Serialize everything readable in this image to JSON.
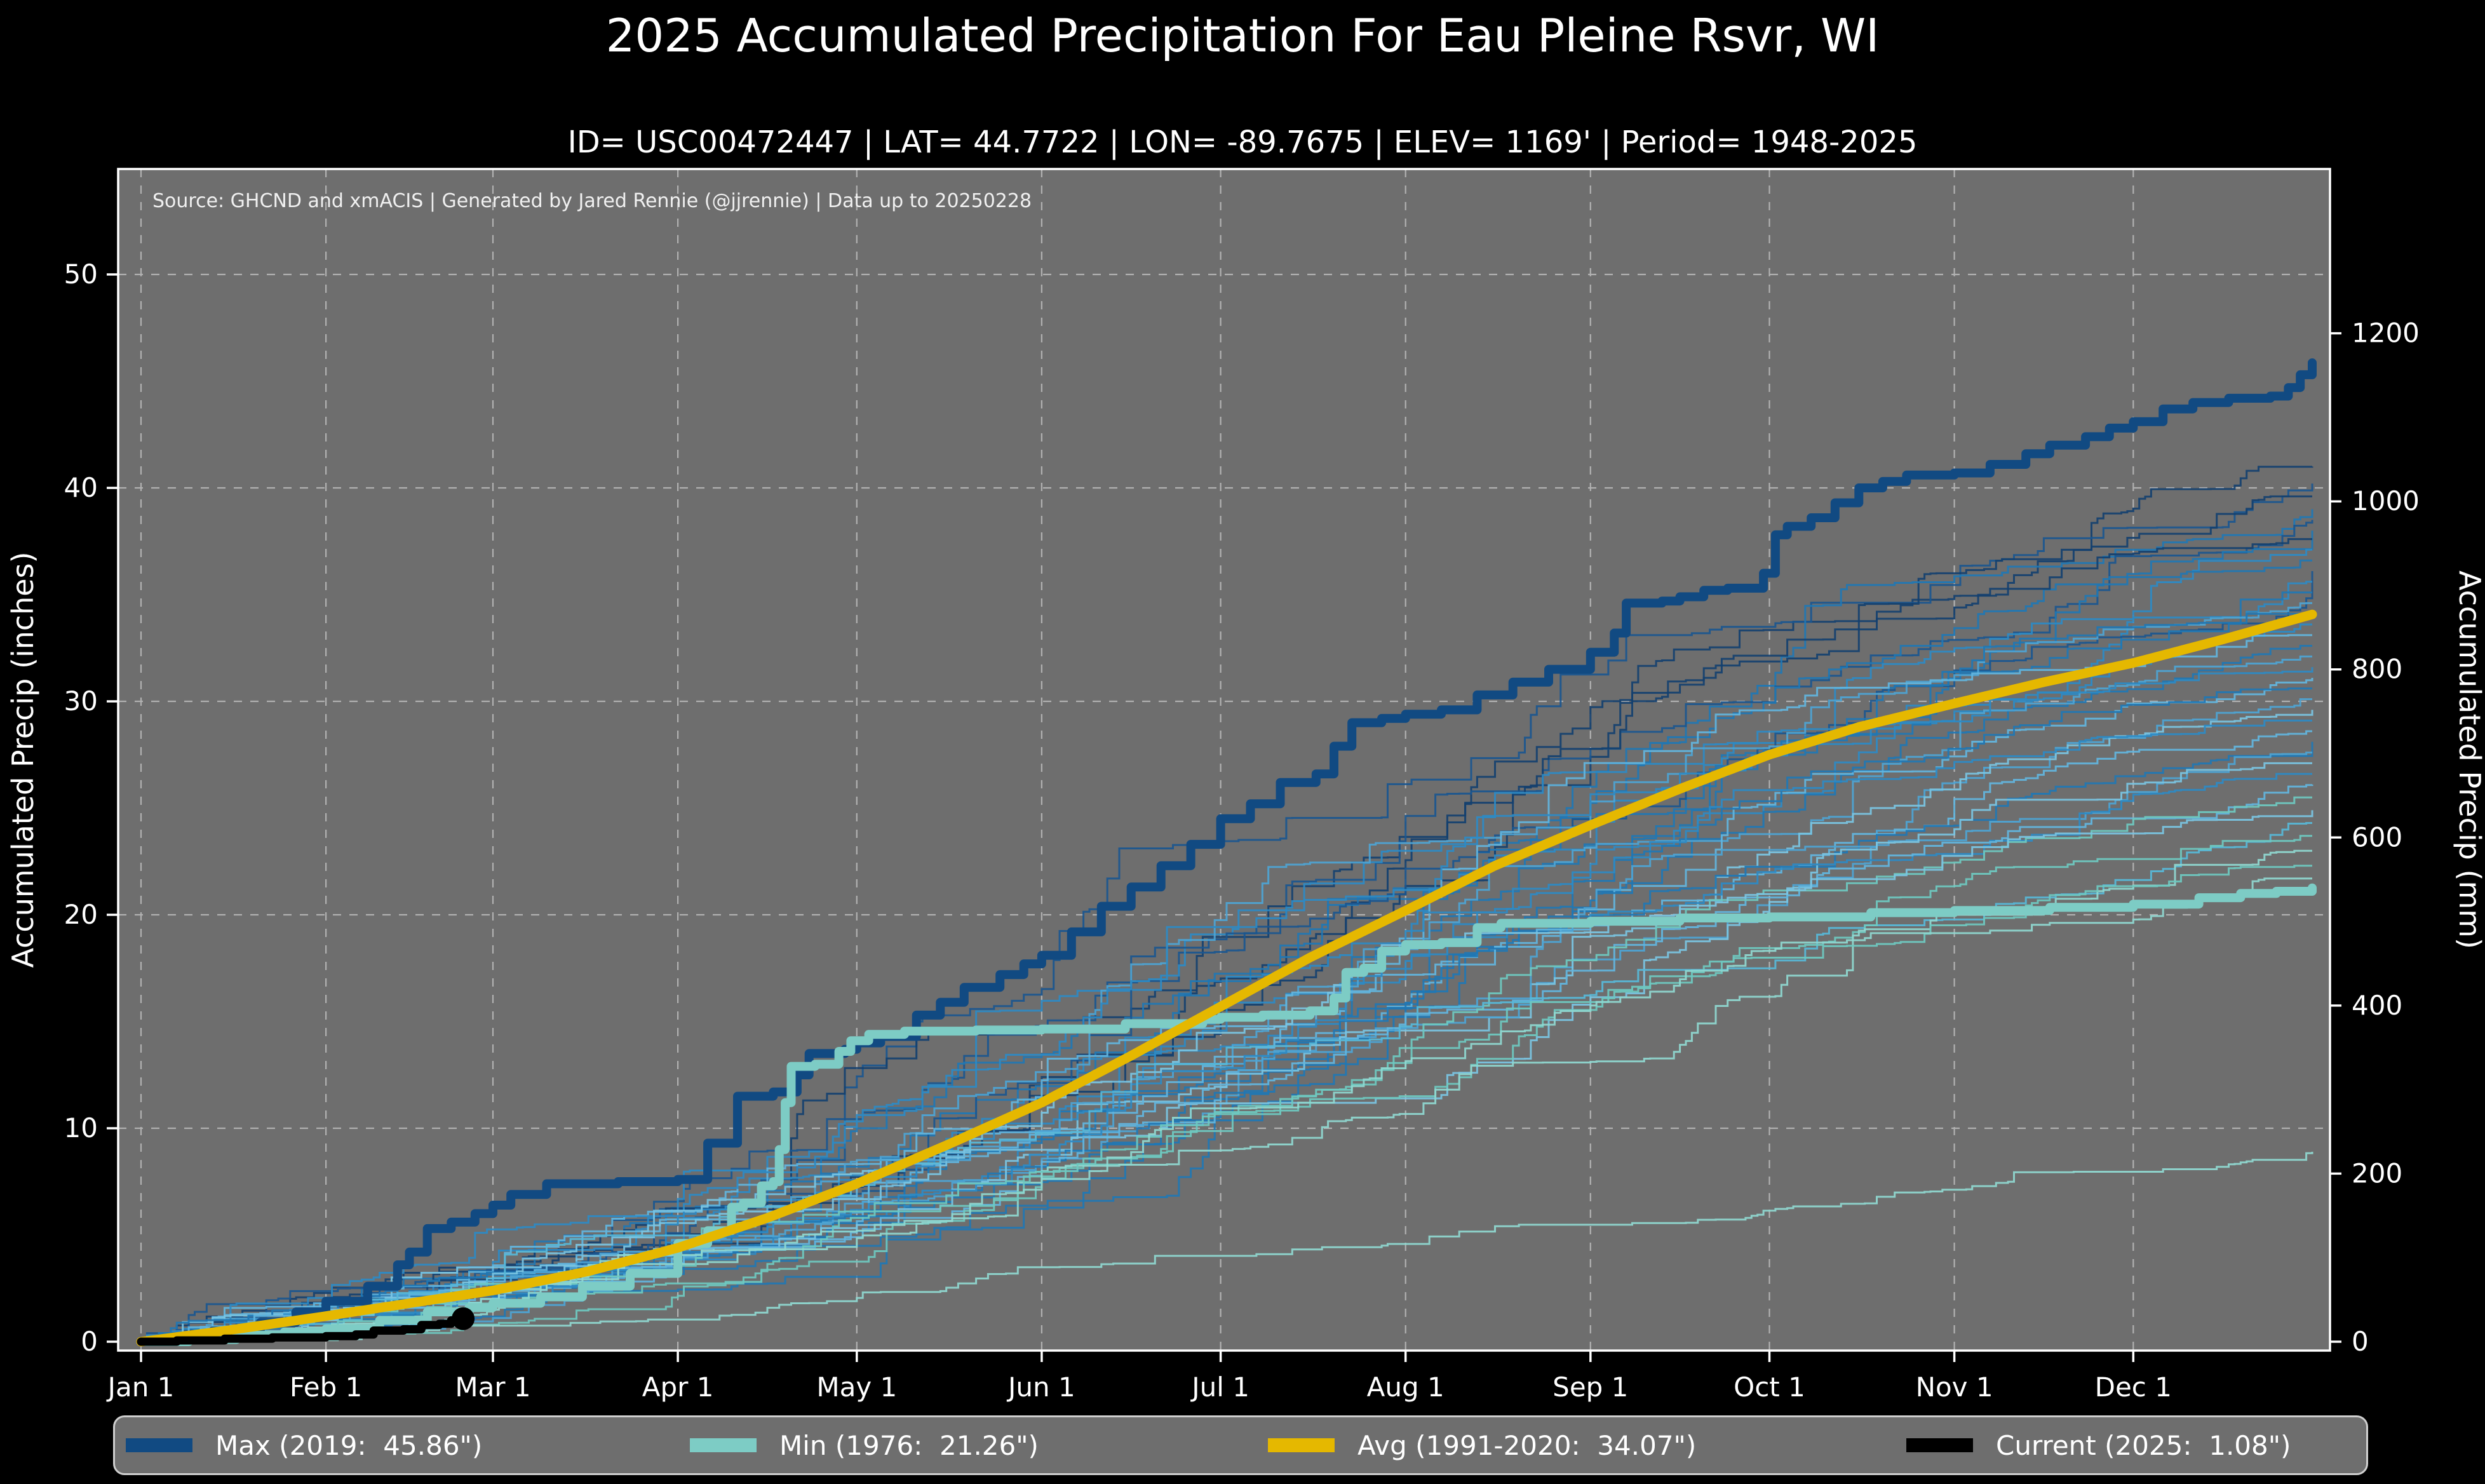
{
  "title": "2025 Accumulated Precipitation For Eau Pleine Rsvr, WI",
  "subtitle": "ID= USC00472447 | LAT= 44.7722 | LON= -89.7675 | ELEV= 1169' | Period= 1948-2025",
  "source_note": "Source: GHCND and xmACIS | Generated by Jared Rennie (@jjrennie) | Data up to 20250228",
  "colors": {
    "figure_bg": "#000000",
    "plot_bg": "#6e6e6e",
    "grid": "#e8e8e8",
    "spine": "#ffffff",
    "text": "#ffffff",
    "max": "#114a82",
    "min": "#7dccc5",
    "avg": "#e5b800",
    "current": "#000000"
  },
  "axes": {
    "left_label": "Accumulated Precip (inches)",
    "right_label": "Accumulated Precip (mm)",
    "left_ticks": [
      0,
      10,
      20,
      30,
      40,
      50
    ],
    "right_ticks": [
      0,
      200,
      400,
      600,
      800,
      1000,
      1200
    ],
    "x_ticks": [
      {
        "label": "Jan 1",
        "day": 0
      },
      {
        "label": "Feb 1",
        "day": 31
      },
      {
        "label": "Mar 1",
        "day": 59
      },
      {
        "label": "Apr 1",
        "day": 90
      },
      {
        "label": "May 1",
        "day": 120
      },
      {
        "label": "Jun 1",
        "day": 151
      },
      {
        "label": "Jul 1",
        "day": 181
      },
      {
        "label": "Aug 1",
        "day": 212
      },
      {
        "label": "Sep 1",
        "day": 243
      },
      {
        "label": "Oct 1",
        "day": 273
      },
      {
        "label": "Nov 1",
        "day": 304
      },
      {
        "label": "Dec 1",
        "day": 334
      }
    ],
    "days_in_year": 365,
    "ylim_inches": [
      0,
      55
    ]
  },
  "legend": [
    {
      "name": "max",
      "label": "Max (2019:  45.86\")",
      "color": "#114a82",
      "x": 17
    },
    {
      "name": "min",
      "label": "Min (1976:  21.26\")",
      "color": "#7dccc5",
      "x": 905
    },
    {
      "name": "avg",
      "label": "Avg (1991-2020:  34.07\")",
      "color": "#e5b800",
      "x": 1815
    },
    {
      "name": "current",
      "label": "Current (2025:  1.08\")",
      "color": "#000000",
      "x": 2820
    }
  ],
  "chart_data": {
    "type": "line",
    "x_unit": "day_of_year",
    "title": "2025 Accumulated Precipitation For Eau Pleine Rsvr, WI",
    "ylabel_left": "Accumulated Precip (inches)",
    "ylabel_right": "Accumulated Precip (mm)",
    "grid": true,
    "legend_position": "bottom",
    "series": [
      {
        "name": "Max",
        "year": 2019,
        "total_in": 45.86,
        "color": "#114a82",
        "width": 14,
        "style": "step",
        "points": [
          [
            0,
            0
          ],
          [
            6,
            0.2
          ],
          [
            12,
            0.5
          ],
          [
            20,
            0.9
          ],
          [
            26,
            1.4
          ],
          [
            31,
            1.9
          ],
          [
            38,
            2.6
          ],
          [
            43,
            3.6
          ],
          [
            45,
            4.2
          ],
          [
            48,
            5.3
          ],
          [
            52,
            5.6
          ],
          [
            56,
            6.0
          ],
          [
            59,
            6.4
          ],
          [
            62,
            6.9
          ],
          [
            68,
            7.4
          ],
          [
            80,
            7.5
          ],
          [
            90,
            7.6
          ],
          [
            95,
            9.3
          ],
          [
            100,
            11.5
          ],
          [
            106,
            11.7
          ],
          [
            110,
            12.5
          ],
          [
            112,
            13.5
          ],
          [
            118,
            13.7
          ],
          [
            120,
            14.0
          ],
          [
            124,
            14.3
          ],
          [
            130,
            15.3
          ],
          [
            134,
            15.9
          ],
          [
            138,
            16.6
          ],
          [
            144,
            17.2
          ],
          [
            148,
            17.7
          ],
          [
            151,
            18.1
          ],
          [
            156,
            19.2
          ],
          [
            161,
            20.4
          ],
          [
            166,
            21.3
          ],
          [
            171,
            22.3
          ],
          [
            176,
            23.3
          ],
          [
            181,
            24.5
          ],
          [
            186,
            25.2
          ],
          [
            191,
            26.2
          ],
          [
            197,
            26.6
          ],
          [
            200,
            27.9
          ],
          [
            203,
            29.0
          ],
          [
            208,
            29.2
          ],
          [
            212,
            29.4
          ],
          [
            218,
            29.6
          ],
          [
            224,
            30.3
          ],
          [
            230,
            30.9
          ],
          [
            236,
            31.5
          ],
          [
            243,
            32.3
          ],
          [
            247,
            33.2
          ],
          [
            249,
            34.6
          ],
          [
            255,
            34.7
          ],
          [
            258,
            34.9
          ],
          [
            262,
            35.2
          ],
          [
            266,
            35.3
          ],
          [
            272,
            36.0
          ],
          [
            274,
            37.8
          ],
          [
            276,
            38.2
          ],
          [
            280,
            38.6
          ],
          [
            284,
            39.3
          ],
          [
            288,
            40.0
          ],
          [
            292,
            40.3
          ],
          [
            296,
            40.6
          ],
          [
            304,
            40.7
          ],
          [
            310,
            41.1
          ],
          [
            316,
            41.6
          ],
          [
            320,
            42.0
          ],
          [
            326,
            42.4
          ],
          [
            330,
            42.8
          ],
          [
            334,
            43.1
          ],
          [
            339,
            43.7
          ],
          [
            344,
            44.0
          ],
          [
            350,
            44.2
          ],
          [
            357,
            44.3
          ],
          [
            360,
            44.7
          ],
          [
            362,
            45.3
          ],
          [
            364,
            45.86
          ]
        ]
      },
      {
        "name": "Min",
        "year": 1976,
        "total_in": 21.26,
        "color": "#7dccc5",
        "width": 14,
        "style": "step",
        "points": [
          [
            0,
            0
          ],
          [
            8,
            0.1
          ],
          [
            16,
            0.3
          ],
          [
            24,
            0.45
          ],
          [
            31,
            0.6
          ],
          [
            40,
            1.0
          ],
          [
            48,
            1.4
          ],
          [
            55,
            1.6
          ],
          [
            59,
            1.8
          ],
          [
            67,
            2.1
          ],
          [
            74,
            2.6
          ],
          [
            82,
            3.2
          ],
          [
            90,
            4.6
          ],
          [
            95,
            5.2
          ],
          [
            99,
            6.3
          ],
          [
            101,
            6.5
          ],
          [
            104,
            7.3
          ],
          [
            106,
            7.5
          ],
          [
            107,
            9.0
          ],
          [
            108,
            11.2
          ],
          [
            109,
            12.9
          ],
          [
            113,
            13.0
          ],
          [
            117,
            13.6
          ],
          [
            119,
            14.1
          ],
          [
            122,
            14.4
          ],
          [
            128,
            14.55
          ],
          [
            140,
            14.6
          ],
          [
            151,
            14.65
          ],
          [
            165,
            14.9
          ],
          [
            178,
            15.1
          ],
          [
            181,
            15.2
          ],
          [
            188,
            15.3
          ],
          [
            196,
            15.5
          ],
          [
            200,
            16.1
          ],
          [
            202,
            17.3
          ],
          [
            205,
            17.5
          ],
          [
            208,
            18.3
          ],
          [
            212,
            18.6
          ],
          [
            218,
            18.7
          ],
          [
            224,
            19.4
          ],
          [
            228,
            19.6
          ],
          [
            243,
            19.7
          ],
          [
            258,
            19.85
          ],
          [
            273,
            19.9
          ],
          [
            290,
            20.1
          ],
          [
            304,
            20.2
          ],
          [
            320,
            20.35
          ],
          [
            334,
            20.5
          ],
          [
            345,
            20.8
          ],
          [
            352,
            21.0
          ],
          [
            358,
            21.1
          ],
          [
            364,
            21.26
          ]
        ]
      },
      {
        "name": "Avg",
        "period": "1991-2020",
        "total_in": 34.07,
        "color": "#e5b800",
        "width": 15,
        "style": "linear",
        "points": [
          [
            0,
            0
          ],
          [
            15,
            0.55
          ],
          [
            31,
            1.2
          ],
          [
            45,
            1.8
          ],
          [
            59,
            2.4
          ],
          [
            75,
            3.3
          ],
          [
            90,
            4.4
          ],
          [
            105,
            5.8
          ],
          [
            120,
            7.4
          ],
          [
            135,
            9.2
          ],
          [
            151,
            11.2
          ],
          [
            166,
            13.4
          ],
          [
            181,
            15.7
          ],
          [
            196,
            18.0
          ],
          [
            212,
            20.2
          ],
          [
            227,
            22.3
          ],
          [
            243,
            24.2
          ],
          [
            258,
            25.9
          ],
          [
            273,
            27.5
          ],
          [
            288,
            28.8
          ],
          [
            304,
            29.9
          ],
          [
            319,
            30.9
          ],
          [
            334,
            31.8
          ],
          [
            349,
            32.9
          ],
          [
            364,
            34.07
          ]
        ]
      },
      {
        "name": "Current",
        "year": 2025,
        "total_in": 1.08,
        "color": "#000000",
        "width": 13,
        "style": "step",
        "marker_end": {
          "r": 18
        },
        "points": [
          [
            0,
            0
          ],
          [
            6,
            0.06
          ],
          [
            14,
            0.14
          ],
          [
            22,
            0.2
          ],
          [
            31,
            0.26
          ],
          [
            36,
            0.34
          ],
          [
            39,
            0.52
          ],
          [
            44,
            0.58
          ],
          [
            47,
            0.78
          ],
          [
            50,
            0.84
          ],
          [
            52,
            1.0
          ],
          [
            54,
            1.08
          ]
        ]
      }
    ],
    "ensemble": {
      "description": "Thin background traces for the other years of 1948-2024",
      "width": 3,
      "opacity": 0.92,
      "palette": [
        "#13406f",
        "#1a568f",
        "#1f77b4",
        "#2d8ac4",
        "#4da4d4",
        "#62b5de",
        "#79c4e2",
        "#6ec9c0",
        "#8fd8d0",
        "#57b8d8"
      ],
      "members": [
        {
          "end": 41.0,
          "color": 0,
          "seed": 11
        },
        {
          "end": 40.2,
          "color": 1,
          "seed": 12
        },
        {
          "end": 39.6,
          "color": 0,
          "seed": 13
        },
        {
          "end": 39.0,
          "color": 2,
          "seed": 14
        },
        {
          "end": 38.5,
          "color": 1,
          "seed": 15
        },
        {
          "end": 38.0,
          "color": 2,
          "seed": 16
        },
        {
          "end": 37.6,
          "color": 0,
          "seed": 17
        },
        {
          "end": 37.1,
          "color": 3,
          "seed": 18
        },
        {
          "end": 36.6,
          "color": 2,
          "seed": 19
        },
        {
          "end": 36.1,
          "color": 1,
          "seed": 20
        },
        {
          "end": 35.6,
          "color": 3,
          "seed": 21
        },
        {
          "end": 35.1,
          "color": 2,
          "seed": 22
        },
        {
          "end": 34.6,
          "color": 4,
          "seed": 23
        },
        {
          "end": 34.1,
          "color": 2,
          "seed": 24
        },
        {
          "end": 33.6,
          "color": 3,
          "seed": 25
        },
        {
          "end": 33.1,
          "color": 5,
          "seed": 26
        },
        {
          "end": 32.6,
          "color": 2,
          "seed": 27
        },
        {
          "end": 32.1,
          "color": 4,
          "seed": 28
        },
        {
          "end": 31.6,
          "color": 3,
          "seed": 29
        },
        {
          "end": 31.1,
          "color": 5,
          "seed": 30
        },
        {
          "end": 30.6,
          "color": 2,
          "seed": 31
        },
        {
          "end": 30.1,
          "color": 4,
          "seed": 32
        },
        {
          "end": 29.6,
          "color": 6,
          "seed": 33
        },
        {
          "end": 29.1,
          "color": 3,
          "seed": 34
        },
        {
          "end": 28.6,
          "color": 5,
          "seed": 35
        },
        {
          "end": 28.1,
          "color": 2,
          "seed": 36
        },
        {
          "end": 27.6,
          "color": 4,
          "seed": 37
        },
        {
          "end": 27.1,
          "color": 6,
          "seed": 38
        },
        {
          "end": 26.6,
          "color": 3,
          "seed": 39
        },
        {
          "end": 26.1,
          "color": 5,
          "seed": 40
        },
        {
          "end": 25.5,
          "color": 7,
          "seed": 41
        },
        {
          "end": 24.9,
          "color": 6,
          "seed": 42
        },
        {
          "end": 24.3,
          "color": 9,
          "seed": 43
        },
        {
          "end": 23.7,
          "color": 7,
          "seed": 44
        },
        {
          "end": 23.0,
          "color": 8,
          "seed": 45
        },
        {
          "end": 22.3,
          "color": 7,
          "seed": 46
        },
        {
          "end": 21.7,
          "color": 8,
          "seed": 47
        },
        {
          "end": 8.9,
          "color": 8,
          "seed": 48
        }
      ]
    }
  }
}
